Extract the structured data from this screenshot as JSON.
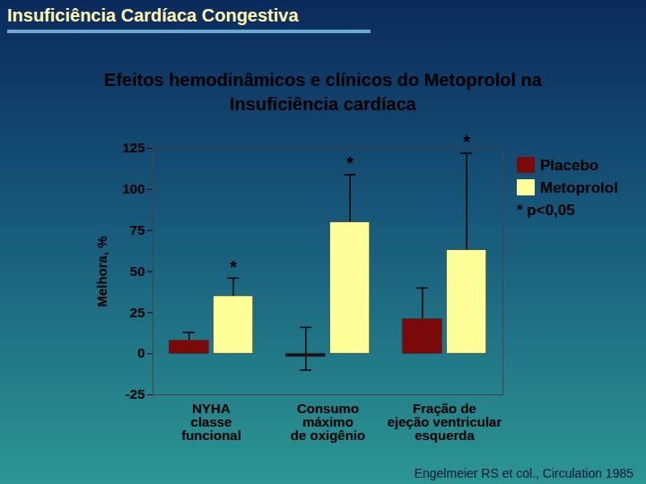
{
  "header": "Insuficiência Cardíaca Congestiva",
  "citation": "Engelmeier RS et col., Circulation 1985",
  "chart_data": {
    "type": "bar",
    "title": "Efeitos hemodinâmicos e clínicos do Metoprolol na Insuficiência cardíaca",
    "ylabel": "Melhora, %",
    "categories": [
      "NYHA\nclasse\nfuncional",
      "Consumo\nmáximo\nde oxigênio",
      "Fração de\nejeção ventricular\nesquerda"
    ],
    "series": [
      {
        "name": "Placebo",
        "color": "#7a0a0a",
        "colors": [
          "#7a0a0a",
          "#141414",
          "#7a0a0a"
        ],
        "values": [
          8,
          -2,
          21
        ],
        "error_high": [
          13,
          16,
          40
        ],
        "error_low": [
          null,
          -10,
          null
        ]
      },
      {
        "name": "Metoprolol",
        "color": "#ffff99",
        "values": [
          35,
          80,
          63
        ],
        "error_high": [
          46,
          109,
          122
        ],
        "error_low": [
          null,
          null,
          null
        ],
        "significant": [
          true,
          true,
          true
        ]
      }
    ],
    "significance_mark": "*",
    "legend_note": "* p<0,05",
    "ylim": [
      -25,
      125
    ],
    "yticks": [
      -25,
      0,
      25,
      50,
      75,
      100,
      125
    ],
    "grid": false,
    "legend": "top-right"
  }
}
